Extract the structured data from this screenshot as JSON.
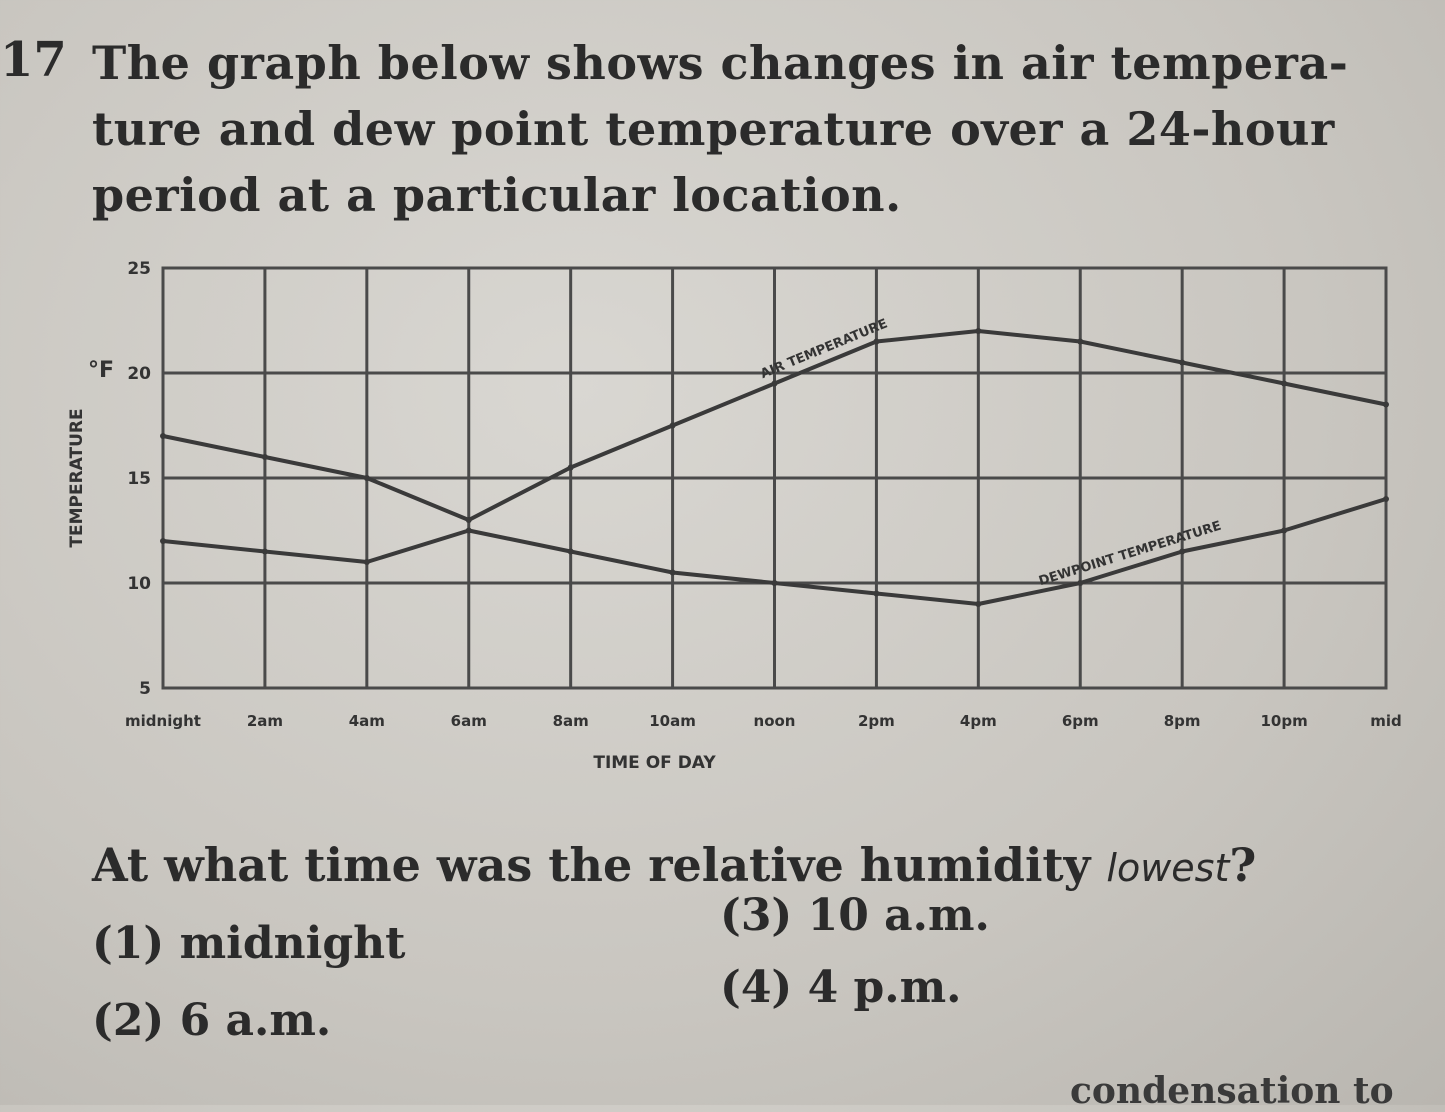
{
  "question": {
    "number": "17",
    "stem_lines": [
      "The graph below shows changes in air tempera-",
      "ture and dew point temperature over a 24-hour",
      "period at a particular location."
    ],
    "prompt": "At what time was the relative humidity",
    "prompt_emphasis": "lowest",
    "prompt_end": "?",
    "choices": [
      {
        "num": "(1)",
        "text": "midnight"
      },
      {
        "num": "(2)",
        "text": "6 a.m."
      },
      {
        "num": "(3)",
        "text": "10 a.m."
      },
      {
        "num": "(4)",
        "text": "4 p.m."
      }
    ],
    "continued_text": "condensation to"
  },
  "chart_data": {
    "type": "line",
    "ylabel": "TEMPERATURE",
    "y_unit": "°F",
    "xlabel": "TIME OF DAY",
    "ylim": [
      5,
      25
    ],
    "yticks": [
      5,
      10,
      15,
      20,
      25
    ],
    "x": [
      0,
      2,
      4,
      6,
      8,
      10,
      12,
      14,
      16,
      18,
      20,
      22,
      24
    ],
    "categories": [
      "midnight",
      "2am",
      "4am",
      "6am",
      "8am",
      "10am",
      "noon",
      "2pm",
      "4pm",
      "6pm",
      "8pm",
      "10pm",
      "mid"
    ],
    "grid": true,
    "series": [
      {
        "name": "AIR TEMPERATURE",
        "values": [
          17,
          16,
          15,
          13,
          15.5,
          17.5,
          19.5,
          21.5,
          22,
          21.5,
          20.5,
          19.5,
          18.5
        ],
        "label_at": 7
      },
      {
        "name": "DEWPOINT TEMPERATURE",
        "values": [
          12,
          11.5,
          11,
          12.5,
          11.5,
          10.5,
          10,
          9.5,
          9,
          10,
          11.5,
          12.5,
          14
        ],
        "label_at": 10
      }
    ],
    "colors": {
      "line": "#3a3a3a",
      "grid": "#4a4a4a"
    }
  }
}
